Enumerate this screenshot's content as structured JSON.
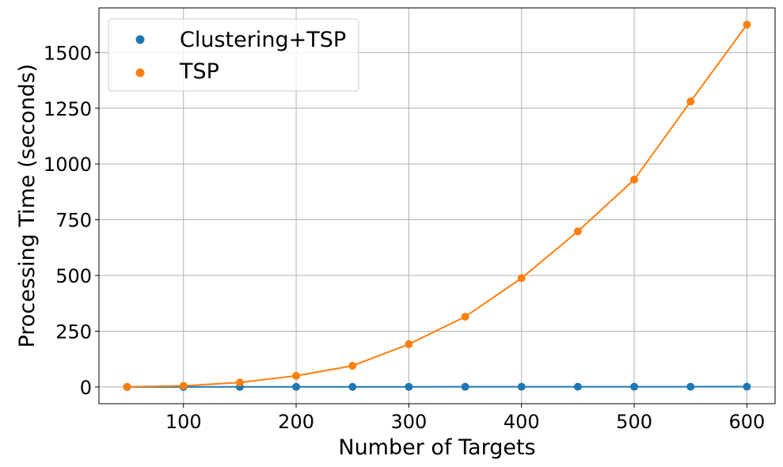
{
  "chart_data": {
    "type": "line",
    "xlabel": "Number of Targets",
    "ylabel": "Processing Time (seconds)",
    "xlim": [
      25,
      625
    ],
    "ylim": [
      -75,
      1700
    ],
    "xticks": [
      100,
      200,
      300,
      400,
      500,
      600
    ],
    "yticks": [
      0,
      250,
      500,
      750,
      1000,
      1250,
      1500
    ],
    "grid": true,
    "legend_position": "top-left",
    "x": [
      50,
      100,
      150,
      200,
      250,
      300,
      350,
      400,
      450,
      500,
      550,
      600
    ],
    "series": [
      {
        "name": "Clustering+TSP",
        "color": "#1f77b4",
        "values": [
          0.1,
          0.2,
          0.3,
          0.4,
          0.5,
          0.6,
          0.7,
          0.8,
          0.9,
          1.0,
          1.1,
          1.2
        ]
      },
      {
        "name": "TSP",
        "color": "#ff7f0e",
        "values": [
          0.5,
          5,
          20,
          50,
          95,
          192,
          315,
          488,
          698,
          930,
          1280,
          1625
        ]
      }
    ]
  }
}
